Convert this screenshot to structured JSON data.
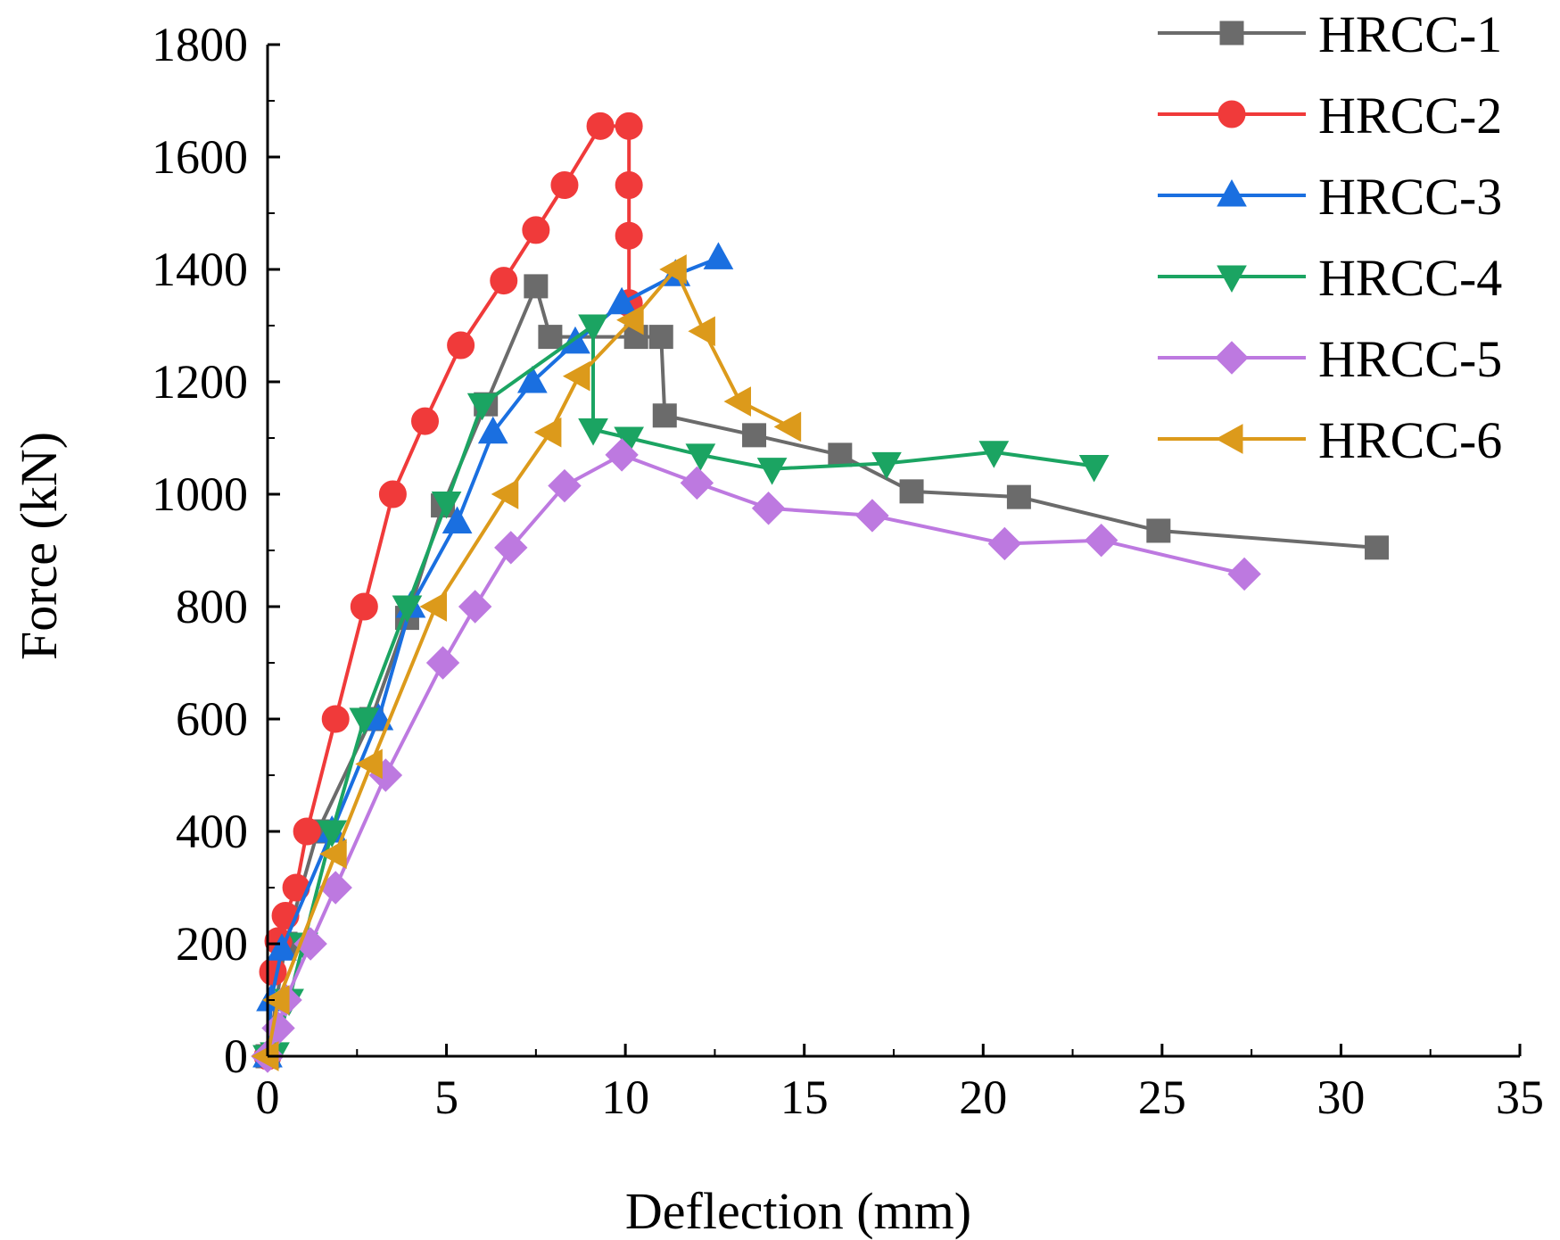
{
  "chart_data": {
    "type": "line",
    "title": "",
    "xlabel": "Deflection (mm)",
    "ylabel": "Force (kN)",
    "xlim": [
      0,
      35
    ],
    "ylim": [
      0,
      1800
    ],
    "xticks": [
      0,
      5,
      10,
      15,
      20,
      25,
      30,
      35
    ],
    "yticks": [
      0,
      200,
      400,
      600,
      800,
      1000,
      1200,
      1400,
      1600,
      1800
    ],
    "grid": false,
    "legend_position": "top-right",
    "series": [
      {
        "name": "HRCC-1",
        "color": "#6b6b6b",
        "marker": "square",
        "points": [
          [
            0,
            0
          ],
          [
            0.5,
            200
          ],
          [
            1.4,
            400
          ],
          [
            2.9,
            600
          ],
          [
            3.9,
            780
          ],
          [
            4.9,
            980
          ],
          [
            6.1,
            1160
          ],
          [
            7.5,
            1370
          ],
          [
            7.9,
            1280
          ],
          [
            10.3,
            1280
          ],
          [
            11,
            1280
          ],
          [
            11.1,
            1140
          ],
          [
            13.6,
            1105
          ],
          [
            16,
            1070
          ],
          [
            18,
            1005
          ],
          [
            21,
            995
          ],
          [
            24.9,
            935
          ],
          [
            31,
            905
          ]
        ]
      },
      {
        "name": "HRCC-2",
        "color": "#f03a3a",
        "marker": "circle",
        "points": [
          [
            0,
            0
          ],
          [
            0.15,
            150
          ],
          [
            0.3,
            205
          ],
          [
            0.5,
            250
          ],
          [
            0.8,
            300
          ],
          [
            1.1,
            400
          ],
          [
            1.9,
            600
          ],
          [
            2.7,
            800
          ],
          [
            3.5,
            1000
          ],
          [
            4.4,
            1130
          ],
          [
            5.4,
            1265
          ],
          [
            6.6,
            1380
          ],
          [
            7.5,
            1470
          ],
          [
            8.3,
            1550
          ],
          [
            9.3,
            1655
          ],
          [
            10.1,
            1655
          ],
          [
            10.1,
            1550
          ],
          [
            10.1,
            1460
          ],
          [
            10.1,
            1340
          ]
        ]
      },
      {
        "name": "HRCC-3",
        "color": "#1a6fe0",
        "marker": "triangle-up",
        "points": [
          [
            0,
            0
          ],
          [
            0.1,
            100
          ],
          [
            0.4,
            190
          ],
          [
            1.8,
            400
          ],
          [
            3.1,
            600
          ],
          [
            4,
            800
          ],
          [
            5.3,
            950
          ],
          [
            6.3,
            1110
          ],
          [
            7.4,
            1200
          ],
          [
            8.6,
            1270
          ],
          [
            9.9,
            1340
          ],
          [
            11.4,
            1390
          ],
          [
            12.6,
            1420
          ]
        ]
      },
      {
        "name": "HRCC-4",
        "color": "#1ba462",
        "marker": "triangle-down",
        "points": [
          [
            0,
            0
          ],
          [
            0.2,
            5
          ],
          [
            0.6,
            100
          ],
          [
            1,
            200
          ],
          [
            1.8,
            400
          ],
          [
            2.7,
            600
          ],
          [
            3.9,
            800
          ],
          [
            5,
            985
          ],
          [
            6,
            1160
          ],
          [
            9.1,
            1300
          ],
          [
            9.1,
            1115
          ],
          [
            10.1,
            1100
          ],
          [
            12.1,
            1070
          ],
          [
            14.1,
            1045
          ],
          [
            17.3,
            1055
          ],
          [
            20.3,
            1075
          ],
          [
            23.1,
            1050
          ]
        ]
      },
      {
        "name": "HRCC-5",
        "color": "#bd79e0",
        "marker": "diamond",
        "points": [
          [
            0,
            0
          ],
          [
            0.3,
            50
          ],
          [
            0.5,
            100
          ],
          [
            1.2,
            200
          ],
          [
            1.9,
            300
          ],
          [
            3.3,
            500
          ],
          [
            4.9,
            700
          ],
          [
            5.8,
            800
          ],
          [
            6.8,
            905
          ],
          [
            8.3,
            1015
          ],
          [
            9.9,
            1070
          ],
          [
            12,
            1020
          ],
          [
            14,
            975
          ],
          [
            16.9,
            962
          ],
          [
            20.6,
            912
          ],
          [
            23.3,
            918
          ],
          [
            27.3,
            858
          ]
        ]
      },
      {
        "name": "HRCC-6",
        "color": "#dc9a1b",
        "marker": "triangle-left",
        "points": [
          [
            0,
            0
          ],
          [
            0.3,
            100
          ],
          [
            1.9,
            360
          ],
          [
            2.9,
            520
          ],
          [
            4.7,
            800
          ],
          [
            6.7,
            1000
          ],
          [
            7.9,
            1110
          ],
          [
            8.7,
            1210
          ],
          [
            10.2,
            1310
          ],
          [
            11.4,
            1400
          ],
          [
            12.2,
            1290
          ],
          [
            13.2,
            1165
          ],
          [
            14.6,
            1120
          ]
        ]
      }
    ]
  }
}
